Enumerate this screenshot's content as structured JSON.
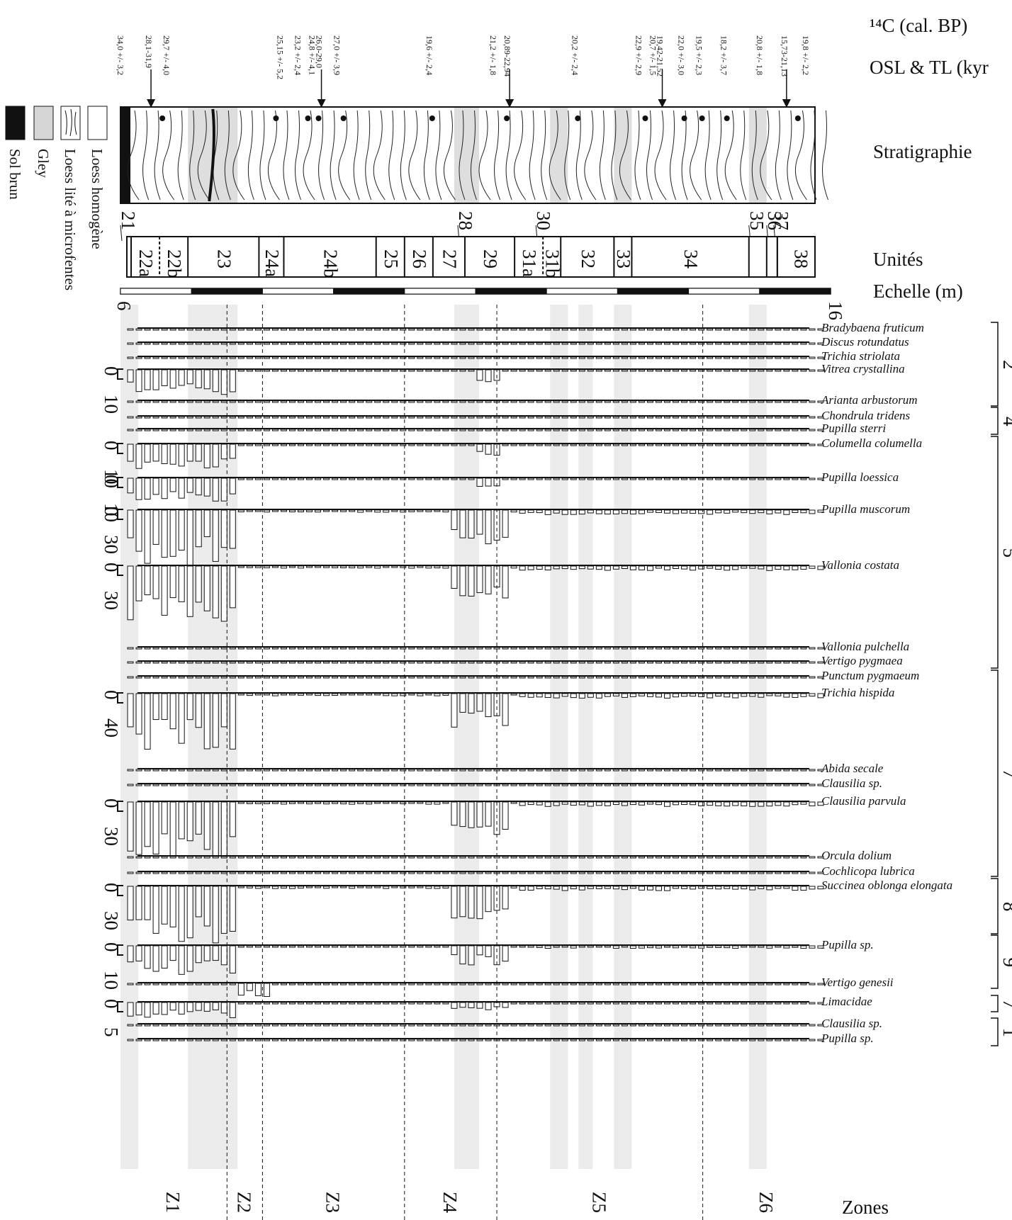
{
  "header": {
    "c14_label": "¹⁴C (cal. BP)",
    "osl_label": "OSL & TL (kyr",
    "strat_label": "Stratigraphie",
    "units_label": "Unités",
    "scale_label": "Echelle (m)",
    "zones_label": "Zones"
  },
  "legend": [
    {
      "name": "Loess homogène",
      "pattern": "blank"
    },
    {
      "name": "Loess lité à microfentes",
      "pattern": "lines"
    },
    {
      "name": "Gley",
      "pattern": "grey"
    },
    {
      "name": "Sol brun",
      "pattern": "black"
    }
  ],
  "dates": [
    {
      "label": "34,0 +/- 3,2",
      "depth": 6.0,
      "arrow": false
    },
    {
      "label": "28,1-31,9",
      "depth": 6.4,
      "arrow": true
    },
    {
      "label": "29,7 +/- 4,0",
      "depth": 6.65,
      "arrow": false
    },
    {
      "label": "25,15 +/- 5,2",
      "depth": 8.25,
      "arrow": false
    },
    {
      "label": "23,2 +/- 2,4",
      "depth": 8.5,
      "arrow": false
    },
    {
      "label": "26,0-29,0",
      "depth": 8.8,
      "arrow": true
    },
    {
      "label": "24,8 +/- 4,1",
      "depth": 8.7,
      "arrow": false
    },
    {
      "label": "27,0 +/- 3,9",
      "depth": 9.05,
      "arrow": false
    },
    {
      "label": "19,6 +/- 2,4",
      "depth": 10.35,
      "arrow": false
    },
    {
      "label": "20,89-22,94",
      "depth": 11.45,
      "arrow": true
    },
    {
      "label": "21,2 +/- 1,8",
      "depth": 11.25,
      "arrow": false
    },
    {
      "label": "20,2 +/- 2,4",
      "depth": 12.4,
      "arrow": false
    },
    {
      "label": "19,42-21,52",
      "depth": 13.6,
      "arrow": true
    },
    {
      "label": "22,9 +/- 2,9",
      "depth": 13.3,
      "arrow": false
    },
    {
      "label": "20,7 +/- 1,5",
      "depth": 13.5,
      "arrow": false
    },
    {
      "label": "22,0 +/- 3,0",
      "depth": 13.9,
      "arrow": false
    },
    {
      "label": "19,5 +/- 2,3",
      "depth": 14.15,
      "arrow": false
    },
    {
      "label": "18,2 +/- 3,7",
      "depth": 14.5,
      "arrow": false
    },
    {
      "label": "20,8 +/- 1,8",
      "depth": 15.0,
      "arrow": false
    },
    {
      "label": "15,73-21,13",
      "depth": 15.35,
      "arrow": true
    },
    {
      "label": "19,8 +/- 2,2",
      "depth": 15.65,
      "arrow": false
    }
  ],
  "boundary_labels": [
    {
      "label": "21",
      "depth": 6.0
    },
    {
      "label": "28",
      "depth": 10.75
    },
    {
      "label": "30",
      "depth": 11.85
    },
    {
      "label": "35",
      "depth": 14.85
    },
    {
      "label": "36",
      "depth": 15.1
    },
    {
      "label": "37",
      "depth": 15.2
    }
  ],
  "units": [
    {
      "label": "22a",
      "from": 6.15,
      "to": 6.55
    },
    {
      "label": "22b",
      "from": 6.55,
      "to": 6.95
    },
    {
      "label": "23",
      "from": 6.95,
      "to": 7.95
    },
    {
      "label": "24a",
      "from": 7.95,
      "to": 8.3
    },
    {
      "label": "24b",
      "from": 8.3,
      "to": 9.6
    },
    {
      "label": "25",
      "from": 9.6,
      "to": 10.0
    },
    {
      "label": "26",
      "from": 10.0,
      "to": 10.4
    },
    {
      "label": "27",
      "from": 10.4,
      "to": 10.85
    },
    {
      "label": "29",
      "from": 10.85,
      "to": 11.55
    },
    {
      "label": "31a",
      "from": 11.55,
      "to": 11.95
    },
    {
      "label": "31b",
      "from": 11.95,
      "to": 12.2
    },
    {
      "label": "32",
      "from": 12.2,
      "to": 12.95
    },
    {
      "label": "33",
      "from": 12.95,
      "to": 13.2
    },
    {
      "label": "34",
      "from": 13.2,
      "to": 14.85
    },
    {
      "label": "38",
      "from": 15.25,
      "to": 15.9
    }
  ],
  "scale": {
    "min": "6",
    "max": "16"
  },
  "species": [
    {
      "name": "Bradybaena fruticum",
      "y": 463
    },
    {
      "name": "Discus rotundatus",
      "y": 483
    },
    {
      "name": "Trichia striolata",
      "y": 503
    },
    {
      "name": "Vitrea crystallina",
      "y": 521,
      "tick_labels": [
        "0",
        "10"
      ]
    },
    {
      "name": "Arianta arbustorum",
      "y": 565
    },
    {
      "name": "Chondrula tridens",
      "y": 587
    },
    {
      "name": "Pupilla sterri",
      "y": 605
    },
    {
      "name": "Columella columella",
      "y": 626,
      "tick_labels": [
        "0",
        "10"
      ]
    },
    {
      "name": "Pupilla loessica",
      "y": 674,
      "tick_labels": [
        "0",
        "10"
      ]
    },
    {
      "name": "Pupilla muscorum",
      "y": 719,
      "tick_labels": [
        "0",
        "30"
      ]
    },
    {
      "name": "Vallonia costata",
      "y": 798,
      "tick_labels": [
        "0",
        "30"
      ]
    },
    {
      "name": "Vallonia pulchella",
      "y": 913
    },
    {
      "name": "Vertigo pygmaea",
      "y": 933
    },
    {
      "name": "Punctum pygmaeum",
      "y": 954
    },
    {
      "name": "Trichia hispida",
      "y": 978,
      "tick_labels": [
        "0",
        "40"
      ]
    },
    {
      "name": "Abida secale",
      "y": 1085
    },
    {
      "name": "Clausilia sp.",
      "y": 1106
    },
    {
      "name": "Clausilia parvula",
      "y": 1131,
      "tick_labels": [
        "0",
        "30"
      ]
    },
    {
      "name": "Orcula dolium",
      "y": 1208
    },
    {
      "name": "Cochlicopa lubrica",
      "y": 1230
    },
    {
      "name": "Succinea oblonga elongata",
      "y": 1250,
      "tick_labels": [
        "0",
        "30"
      ]
    },
    {
      "name": "Pupilla sp.",
      "y": 1334,
      "tick_labels": [
        "0",
        "10"
      ]
    },
    {
      "name": "Vertigo genesii",
      "y": 1387
    },
    {
      "name": "Limacidae",
      "y": 1414,
      "tick_labels": [
        "0",
        "5"
      ]
    },
    {
      "name": "Clausilia sp.",
      "y": 1445
    },
    {
      "name": "Pupilla sp.",
      "y": 1466
    }
  ],
  "groups": [
    {
      "label": "2",
      "from": 455,
      "to": 573
    },
    {
      "label": "4",
      "from": 575,
      "to": 613
    },
    {
      "label": "5",
      "from": 616,
      "to": 943
    },
    {
      "label": "7",
      "from": 946,
      "to": 1237
    },
    {
      "label": "8",
      "from": 1240,
      "to": 1318
    },
    {
      "label": "9",
      "from": 1320,
      "to": 1395
    },
    {
      "label": "7",
      "from": 1405,
      "to": 1428
    },
    {
      "label": "1",
      "from": 1437,
      "to": 1476
    }
  ],
  "zones": [
    {
      "label": "Z1",
      "from": 6.0,
      "to": 7.5
    },
    {
      "label": "Z2",
      "from": 7.5,
      "to": 8.0
    },
    {
      "label": "Z3",
      "from": 8.0,
      "to": 10.0
    },
    {
      "label": "Z4",
      "from": 10.0,
      "to": 11.3
    },
    {
      "label": "Z5",
      "from": 11.3,
      "to": 14.2
    },
    {
      "label": "Z6",
      "from": 14.2,
      "to": 16.0
    }
  ],
  "grey_bands": [
    {
      "from": 6.0,
      "to": 6.25
    },
    {
      "from": 6.95,
      "to": 7.65
    },
    {
      "from": 10.7,
      "to": 11.05
    },
    {
      "from": 12.05,
      "to": 12.3
    },
    {
      "from": 12.45,
      "to": 12.65
    },
    {
      "from": 12.95,
      "to": 13.2
    },
    {
      "from": 14.85,
      "to": 15.1
    }
  ]
}
